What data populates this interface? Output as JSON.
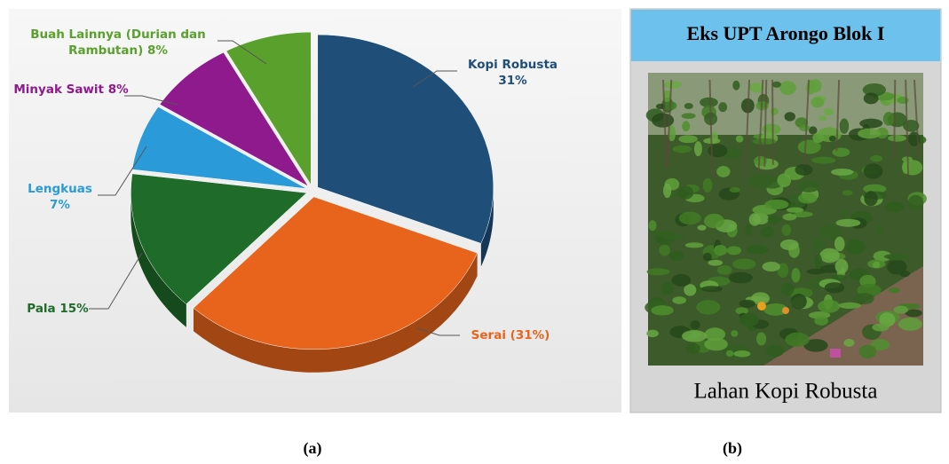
{
  "chart_data": {
    "type": "pie",
    "categories": [
      "Kopi Robusta",
      "Serai",
      "Pala",
      "Lengkuas",
      "Minyak Sawit",
      "Buah Lainnya (Durian dan Rambutan)"
    ],
    "values": [
      31,
      31,
      15,
      7,
      8,
      8
    ],
    "value_labels": [
      "31%",
      "(31%)",
      "15%",
      "7%",
      "8%",
      "8%"
    ],
    "colors": [
      "#1f4e79",
      "#e8641c",
      "#1e6b2a",
      "#2a9bd8",
      "#8e1a8e",
      "#5aa02c"
    ],
    "caption": "(a)"
  },
  "photo_panel": {
    "title": "Eks UPT Arongo Blok I",
    "caption": "Lahan Kopi Robusta",
    "label": "(b)"
  }
}
